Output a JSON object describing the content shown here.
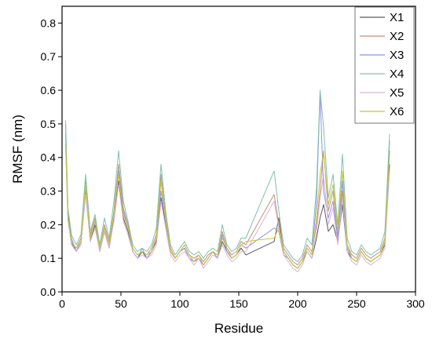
{
  "chart_data": {
    "type": "line",
    "title": "",
    "xlabel": "Residue",
    "ylabel": "RMSF (nm)",
    "xlim": [
      0,
      300
    ],
    "ylim": [
      0.0,
      0.85
    ],
    "xticks": [
      0,
      50,
      100,
      150,
      200,
      250,
      300
    ],
    "yticks": [
      0.0,
      0.1,
      0.2,
      0.3,
      0.4,
      0.5,
      0.6,
      0.7,
      0.8
    ],
    "xtick_labels": [
      "0",
      "50",
      "100",
      "150",
      "200",
      "250",
      "300"
    ],
    "ytick_labels": [
      "0.0",
      "0.1",
      "0.2",
      "0.3",
      "0.4",
      "0.5",
      "0.6",
      "0.7",
      "0.8"
    ],
    "grid": false,
    "legend_position": "top-right",
    "x": [
      3,
      5,
      8,
      12,
      16,
      20,
      24,
      28,
      32,
      36,
      40,
      44,
      48,
      52,
      56,
      60,
      64,
      68,
      72,
      76,
      80,
      84,
      88,
      92,
      96,
      100,
      104,
      108,
      112,
      116,
      120,
      124,
      128,
      132,
      136,
      140,
      144,
      148,
      152,
      156,
      180,
      184,
      188,
      192,
      196,
      200,
      204,
      208,
      212,
      216,
      219,
      222,
      226,
      230,
      234,
      238,
      242,
      246,
      250,
      254,
      258,
      262,
      266,
      270,
      274,
      278
    ],
    "series": [
      {
        "name": "X1",
        "color": "#5a5a5a",
        "values": [
          0.44,
          0.23,
          0.15,
          0.12,
          0.14,
          0.3,
          0.15,
          0.2,
          0.12,
          0.18,
          0.13,
          0.22,
          0.33,
          0.22,
          0.18,
          0.12,
          0.1,
          0.12,
          0.1,
          0.12,
          0.15,
          0.28,
          0.2,
          0.12,
          0.1,
          0.12,
          0.13,
          0.1,
          0.09,
          0.1,
          0.08,
          0.1,
          0.12,
          0.1,
          0.15,
          0.12,
          0.1,
          0.11,
          0.13,
          0.11,
          0.15,
          0.22,
          0.12,
          0.1,
          0.08,
          0.07,
          0.09,
          0.12,
          0.1,
          0.16,
          0.22,
          0.26,
          0.18,
          0.2,
          0.15,
          0.26,
          0.12,
          0.1,
          0.09,
          0.12,
          0.1,
          0.09,
          0.1,
          0.11,
          0.14,
          0.38
        ]
      },
      {
        "name": "X2",
        "color": "#c8907a",
        "values": [
          0.47,
          0.22,
          0.14,
          0.13,
          0.16,
          0.33,
          0.17,
          0.22,
          0.13,
          0.2,
          0.15,
          0.24,
          0.38,
          0.25,
          0.2,
          0.13,
          0.11,
          0.12,
          0.11,
          0.13,
          0.17,
          0.35,
          0.22,
          0.13,
          0.1,
          0.12,
          0.14,
          0.11,
          0.1,
          0.11,
          0.09,
          0.11,
          0.12,
          0.11,
          0.18,
          0.13,
          0.11,
          0.12,
          0.15,
          0.14,
          0.29,
          0.2,
          0.13,
          0.11,
          0.09,
          0.08,
          0.1,
          0.14,
          0.12,
          0.2,
          0.3,
          0.42,
          0.24,
          0.3,
          0.17,
          0.3,
          0.14,
          0.11,
          0.1,
          0.13,
          0.11,
          0.1,
          0.11,
          0.12,
          0.16,
          0.45
        ]
      },
      {
        "name": "X3",
        "color": "#8f8ff0",
        "values": [
          0.5,
          0.24,
          0.16,
          0.12,
          0.15,
          0.31,
          0.16,
          0.21,
          0.12,
          0.19,
          0.14,
          0.23,
          0.36,
          0.24,
          0.19,
          0.12,
          0.1,
          0.13,
          0.1,
          0.12,
          0.16,
          0.3,
          0.21,
          0.12,
          0.1,
          0.12,
          0.13,
          0.1,
          0.09,
          0.1,
          0.08,
          0.1,
          0.12,
          0.1,
          0.17,
          0.12,
          0.1,
          0.11,
          0.14,
          0.13,
          0.19,
          0.18,
          0.11,
          0.1,
          0.08,
          0.07,
          0.09,
          0.13,
          0.11,
          0.27,
          0.59,
          0.3,
          0.22,
          0.27,
          0.16,
          0.33,
          0.13,
          0.1,
          0.09,
          0.12,
          0.1,
          0.09,
          0.1,
          0.11,
          0.15,
          0.42
        ]
      },
      {
        "name": "X4",
        "color": "#7ec2a8",
        "values": [
          0.51,
          0.25,
          0.17,
          0.14,
          0.17,
          0.35,
          0.18,
          0.23,
          0.14,
          0.22,
          0.16,
          0.27,
          0.42,
          0.27,
          0.21,
          0.14,
          0.12,
          0.13,
          0.12,
          0.14,
          0.19,
          0.38,
          0.24,
          0.14,
          0.11,
          0.13,
          0.15,
          0.12,
          0.11,
          0.12,
          0.1,
          0.12,
          0.13,
          0.12,
          0.2,
          0.14,
          0.12,
          0.13,
          0.16,
          0.16,
          0.36,
          0.24,
          0.14,
          0.12,
          0.1,
          0.09,
          0.11,
          0.16,
          0.14,
          0.31,
          0.6,
          0.49,
          0.28,
          0.35,
          0.2,
          0.41,
          0.16,
          0.12,
          0.11,
          0.14,
          0.12,
          0.11,
          0.12,
          0.13,
          0.18,
          0.47
        ]
      },
      {
        "name": "X5",
        "color": "#d6b3dc",
        "values": [
          0.43,
          0.21,
          0.14,
          0.12,
          0.14,
          0.29,
          0.15,
          0.19,
          0.12,
          0.18,
          0.13,
          0.21,
          0.32,
          0.21,
          0.17,
          0.12,
          0.1,
          0.11,
          0.1,
          0.11,
          0.14,
          0.27,
          0.19,
          0.11,
          0.09,
          0.11,
          0.12,
          0.1,
          0.08,
          0.1,
          0.07,
          0.09,
          0.11,
          0.1,
          0.14,
          0.11,
          0.09,
          0.1,
          0.12,
          0.12,
          0.27,
          0.19,
          0.11,
          0.09,
          0.07,
          0.06,
          0.08,
          0.12,
          0.1,
          0.18,
          0.28,
          0.35,
          0.2,
          0.25,
          0.14,
          0.28,
          0.12,
          0.09,
          0.08,
          0.11,
          0.09,
          0.08,
          0.09,
          0.1,
          0.13,
          0.36
        ]
      },
      {
        "name": "X6",
        "color": "#c8c830",
        "values": [
          0.45,
          0.22,
          0.15,
          0.13,
          0.15,
          0.32,
          0.16,
          0.21,
          0.13,
          0.19,
          0.14,
          0.23,
          0.35,
          0.23,
          0.19,
          0.13,
          0.11,
          0.12,
          0.11,
          0.12,
          0.16,
          0.33,
          0.21,
          0.12,
          0.1,
          0.12,
          0.14,
          0.11,
          0.09,
          0.11,
          0.08,
          0.1,
          0.12,
          0.11,
          0.16,
          0.13,
          0.1,
          0.11,
          0.14,
          0.15,
          0.16,
          0.19,
          0.12,
          0.1,
          0.08,
          0.07,
          0.09,
          0.13,
          0.11,
          0.22,
          0.35,
          0.42,
          0.26,
          0.32,
          0.18,
          0.36,
          0.14,
          0.1,
          0.09,
          0.12,
          0.1,
          0.09,
          0.1,
          0.11,
          0.15,
          0.41
        ]
      }
    ]
  }
}
